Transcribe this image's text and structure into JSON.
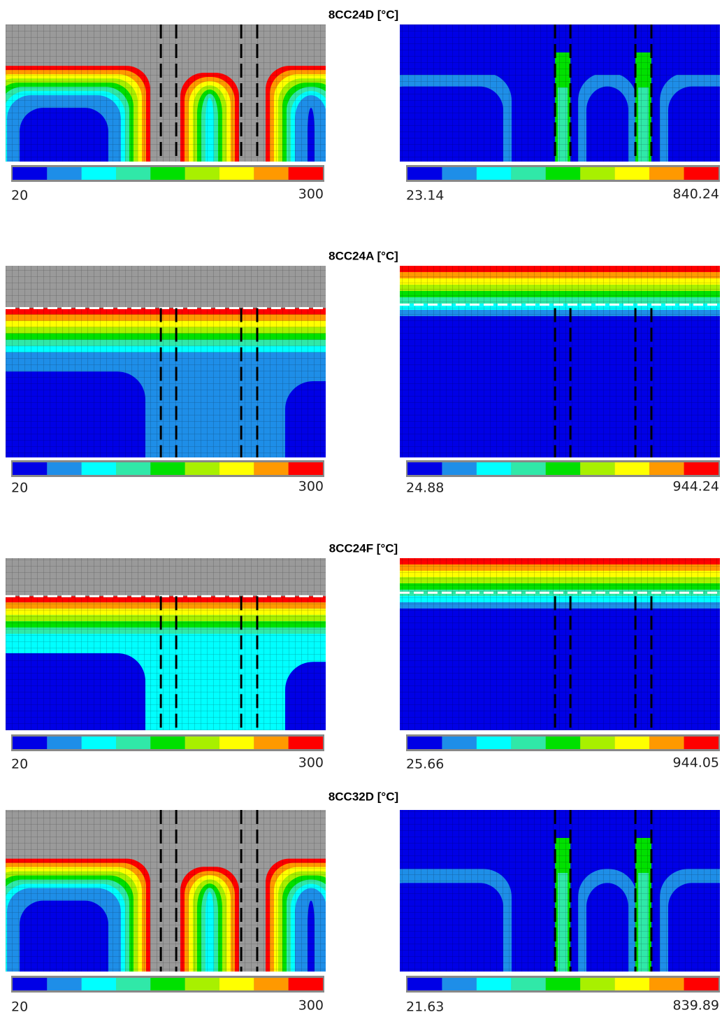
{
  "colorbar_colors": [
    "#0000e6",
    "#1e8ee8",
    "#00ffff",
    "#30e8a8",
    "#00e000",
    "#a8f000",
    "#ffff00",
    "#ff9900",
    "#ff0000"
  ],
  "panels": [
    {
      "title": "8CC24D [°C]",
      "left": {
        "min": "20",
        "max": "300"
      },
      "right": {
        "min": "23.14",
        "max": "840.24"
      }
    },
    {
      "title": "8CC24A [°C]",
      "left": {
        "min": "20",
        "max": "300"
      },
      "right": {
        "min": "24.88",
        "max": "944.24"
      }
    },
    {
      "title": "8CC24F [°C]",
      "left": {
        "min": "20",
        "max": "300"
      },
      "right": {
        "min": "25.66",
        "max": "944.05"
      }
    },
    {
      "title": "8CC32D [°C]",
      "left": {
        "min": "20",
        "max": "300"
      },
      "right": {
        "min": "21.63",
        "max": "839.89"
      }
    }
  ]
}
